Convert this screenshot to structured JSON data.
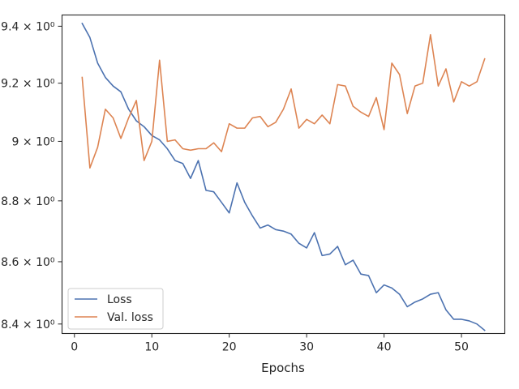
{
  "chart_data": {
    "type": "line",
    "title": "",
    "xlabel": "Epochs",
    "ylabel": "",
    "xlim": [
      -1.6,
      55.6
    ],
    "ylim": [
      8.37,
      9.44
    ],
    "yscale": "log",
    "grid": false,
    "legend_position": "lower-left",
    "x_ticks": [
      0,
      10,
      20,
      30,
      40,
      50
    ],
    "x_tick_labels": [
      "0",
      "10",
      "20",
      "30",
      "40",
      "50"
    ],
    "y_ticks": [
      8.4,
      8.6,
      8.8,
      9.0,
      9.2,
      9.4
    ],
    "y_tick_labels": [
      "8.4 × 10⁰",
      "8.6 × 10⁰",
      "8.8 × 10⁰",
      "9 × 10⁰",
      "9.2 × 10⁰",
      "9.4 × 10⁰"
    ],
    "x": [
      1,
      2,
      3,
      4,
      5,
      6,
      7,
      8,
      9,
      10,
      11,
      12,
      13,
      14,
      15,
      16,
      17,
      18,
      19,
      20,
      21,
      22,
      23,
      24,
      25,
      26,
      27,
      28,
      29,
      30,
      31,
      32,
      33,
      34,
      35,
      36,
      37,
      38,
      39,
      40,
      41,
      42,
      43,
      44,
      45,
      46,
      47,
      48,
      49,
      50,
      51,
      52,
      53
    ],
    "series": [
      {
        "name": "Loss",
        "color": "#4c72b0",
        "values": [
          9.41,
          9.36,
          9.27,
          9.22,
          9.19,
          9.17,
          9.11,
          9.07,
          9.05,
          9.02,
          9.005,
          8.975,
          8.935,
          8.925,
          8.875,
          8.935,
          8.835,
          8.83,
          8.795,
          8.76,
          8.86,
          8.795,
          8.75,
          8.71,
          8.72,
          8.705,
          8.7,
          8.69,
          8.66,
          8.645,
          8.695,
          8.62,
          8.625,
          8.65,
          8.59,
          8.605,
          8.56,
          8.555,
          8.5,
          8.525,
          8.515,
          8.495,
          8.455,
          8.47,
          8.48,
          8.495,
          8.5,
          8.445,
          8.415,
          8.415,
          8.41,
          8.4,
          8.38
        ]
      },
      {
        "name": "Val. loss",
        "color": "#dd8452",
        "values": [
          9.22,
          8.91,
          8.98,
          9.11,
          9.08,
          9.01,
          9.08,
          9.14,
          8.935,
          9.0,
          9.28,
          9.0,
          9.005,
          8.975,
          8.97,
          8.975,
          8.975,
          8.995,
          8.965,
          9.06,
          9.045,
          9.045,
          9.08,
          9.085,
          9.05,
          9.065,
          9.11,
          9.18,
          9.045,
          9.075,
          9.06,
          9.09,
          9.06,
          9.195,
          9.19,
          9.12,
          9.1,
          9.085,
          9.15,
          9.04,
          9.27,
          9.23,
          9.095,
          9.19,
          9.2,
          9.37,
          9.19,
          9.25,
          9.135,
          9.205,
          9.19,
          9.205,
          9.285
        ]
      }
    ]
  }
}
